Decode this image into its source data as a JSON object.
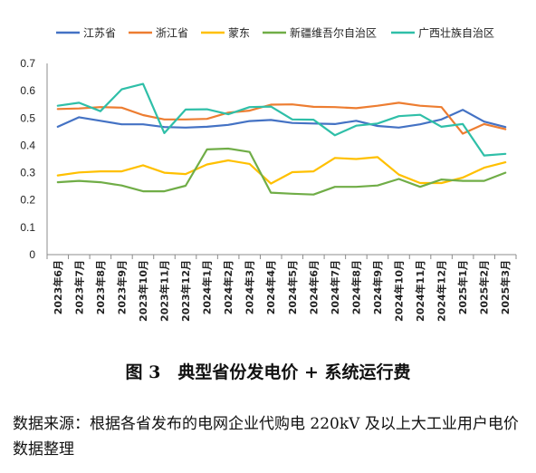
{
  "chart_data": {
    "type": "line",
    "ylim": [
      0,
      0.7
    ],
    "yticks": [
      "0",
      "0.1",
      "0.2",
      "0.3",
      "0.4",
      "0.5",
      "0.6",
      "0.7"
    ],
    "grid": false,
    "legend_position": "top",
    "categories": [
      "2023年6月",
      "2023年7月",
      "2023年8月",
      "2023年9月",
      "2023年10月",
      "2023年11月",
      "2023年12月",
      "2024年1月",
      "2024年2月",
      "2024年3月",
      "2024年4月",
      "2024年5月",
      "2024年6月",
      "2024年7月",
      "2024年8月",
      "2024年9月",
      "2024年10月",
      "2024年11月",
      "2024年12月",
      "2025年1月",
      "2025年2月",
      "2025年3月"
    ],
    "series": [
      {
        "name": "江苏省",
        "color": "#4472C4",
        "values": [
          0.468,
          0.503,
          0.49,
          0.477,
          0.477,
          0.467,
          0.465,
          0.468,
          0.475,
          0.489,
          0.493,
          0.482,
          0.48,
          0.478,
          0.49,
          0.471,
          0.465,
          0.477,
          0.495,
          0.53,
          0.487,
          0.467
        ]
      },
      {
        "name": "浙江省",
        "color": "#ED7D31",
        "values": [
          0.533,
          0.535,
          0.54,
          0.538,
          0.511,
          0.495,
          0.495,
          0.497,
          0.52,
          0.527,
          0.549,
          0.55,
          0.541,
          0.54,
          0.536,
          0.545,
          0.556,
          0.545,
          0.54,
          0.443,
          0.478,
          0.459
        ]
      },
      {
        "name": "蒙东",
        "color": "#FFC000",
        "values": [
          0.29,
          0.301,
          0.305,
          0.305,
          0.327,
          0.3,
          0.295,
          0.33,
          0.345,
          0.332,
          0.26,
          0.302,
          0.305,
          0.354,
          0.35,
          0.357,
          0.293,
          0.262,
          0.262,
          0.282,
          0.318,
          0.338
        ]
      },
      {
        "name": "新疆维吾尔自治区",
        "color": "#70AD47",
        "values": [
          0.265,
          0.27,
          0.265,
          0.253,
          0.232,
          0.232,
          0.252,
          0.385,
          0.388,
          0.376,
          0.227,
          0.223,
          0.22,
          0.248,
          0.248,
          0.253,
          0.277,
          0.248,
          0.275,
          0.27,
          0.27,
          0.3
        ]
      },
      {
        "name": "广西壮族自治区",
        "color": "#2FBFA8",
        "values": [
          0.545,
          0.556,
          0.525,
          0.605,
          0.625,
          0.445,
          0.531,
          0.532,
          0.514,
          0.54,
          0.542,
          0.495,
          0.494,
          0.437,
          0.472,
          0.48,
          0.507,
          0.512,
          0.468,
          0.478,
          0.363,
          0.369
        ]
      }
    ]
  },
  "caption": "图 3　典型省份发电价 + 系统运行费",
  "source_note": "数据来源：根据各省发布的电网企业代购电 220kV 及以上大工业用户电价数据整理"
}
